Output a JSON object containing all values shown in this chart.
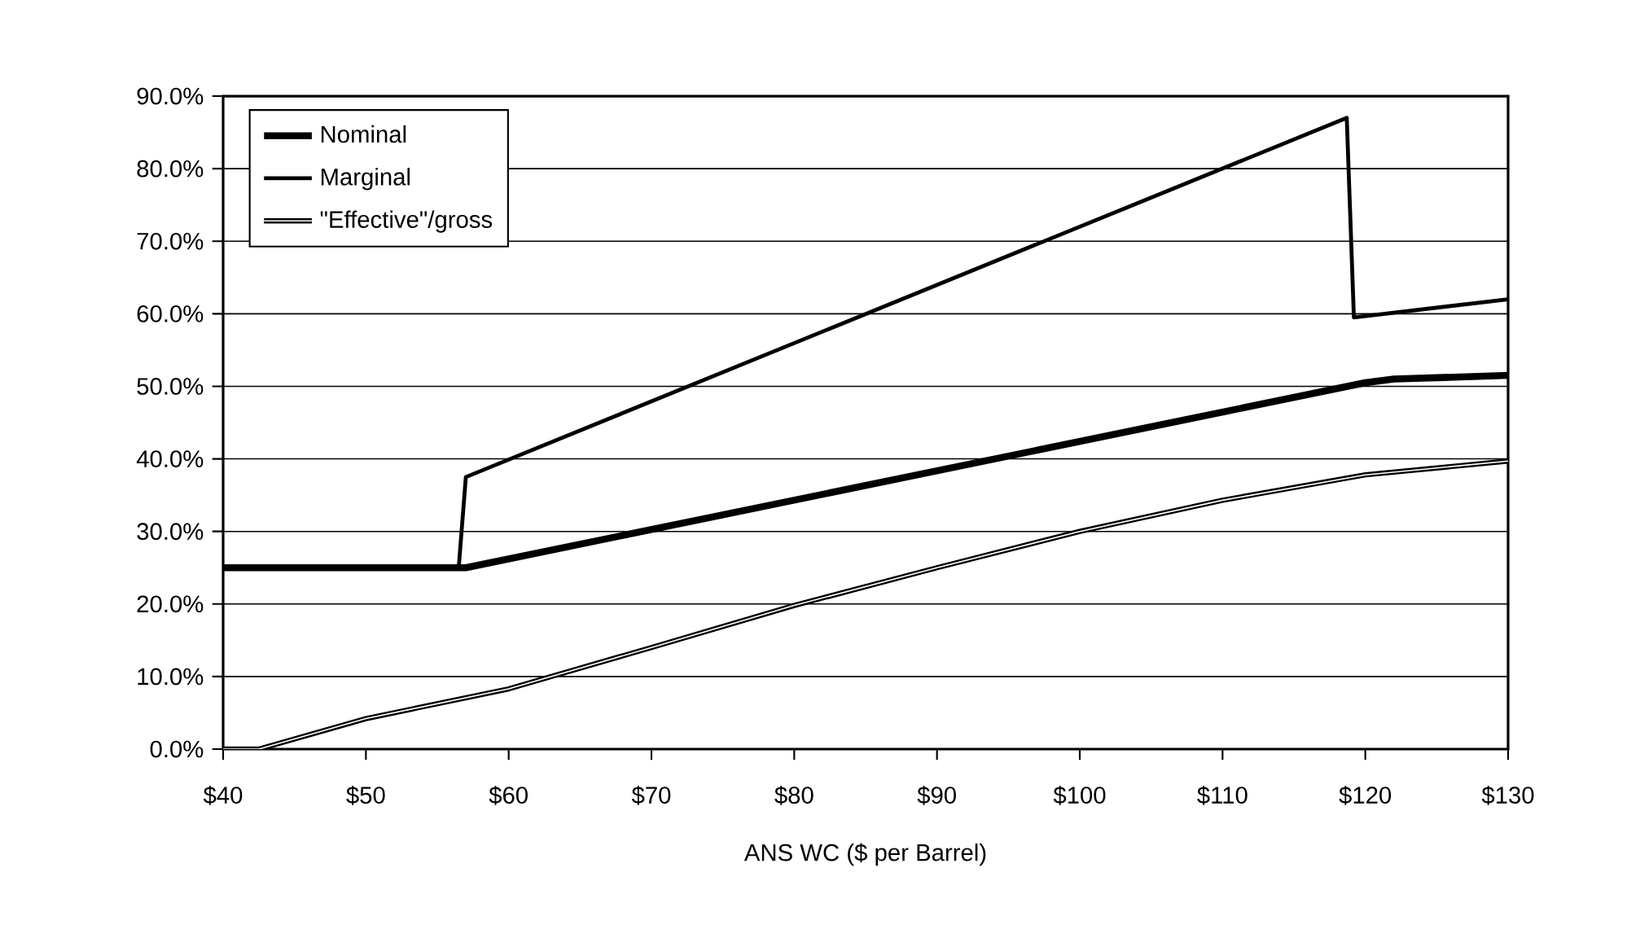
{
  "chart_data": {
    "type": "line",
    "xlabel": "ANS WC ($ per Barrel)",
    "xlim": [
      40,
      130
    ],
    "ylim": [
      0,
      90
    ],
    "xticks": [
      {
        "value": 40,
        "label": "$40"
      },
      {
        "value": 50,
        "label": "$50"
      },
      {
        "value": 60,
        "label": "$60"
      },
      {
        "value": 70,
        "label": "$70"
      },
      {
        "value": 80,
        "label": "$80"
      },
      {
        "value": 90,
        "label": "$90"
      },
      {
        "value": 100,
        "label": "$100"
      },
      {
        "value": 110,
        "label": "$110"
      },
      {
        "value": 120,
        "label": "$120"
      },
      {
        "value": 130,
        "label": "$130"
      }
    ],
    "yticks": [
      {
        "value": 0,
        "label": "0.0%"
      },
      {
        "value": 10,
        "label": "10.0%"
      },
      {
        "value": 20,
        "label": "20.0%"
      },
      {
        "value": 30,
        "label": "30.0%"
      },
      {
        "value": 40,
        "label": "40.0%"
      },
      {
        "value": 50,
        "label": "50.0%"
      },
      {
        "value": 60,
        "label": "60.0%"
      },
      {
        "value": 70,
        "label": "70.0%"
      },
      {
        "value": 80,
        "label": "80.0%"
      },
      {
        "value": 90,
        "label": "90.0%"
      }
    ],
    "grid": "y",
    "legend": "top left",
    "marker": "none",
    "line_style": "solid",
    "series": [
      {
        "name": "Nominal",
        "color": "#000000",
        "x": [
          40,
          57,
          120,
          122,
          130
        ],
        "values": [
          25,
          25,
          50.5,
          51,
          51.5
        ]
      },
      {
        "name": "Marginal",
        "color": "#000000",
        "x": [
          40,
          56.5,
          57,
          118.7,
          119.2,
          130
        ],
        "values": [
          25,
          25,
          37.5,
          87,
          59.5,
          62
        ]
      },
      {
        "name": "\"Effective\"/gross",
        "color": "#000000",
        "x": [
          40,
          42.5,
          50,
          60,
          70,
          80,
          90,
          100,
          110,
          120,
          130
        ],
        "values": [
          0,
          0,
          4.2,
          8.3,
          14,
          19.8,
          25,
          30,
          34.3,
          37.8,
          39.7
        ]
      }
    ]
  }
}
